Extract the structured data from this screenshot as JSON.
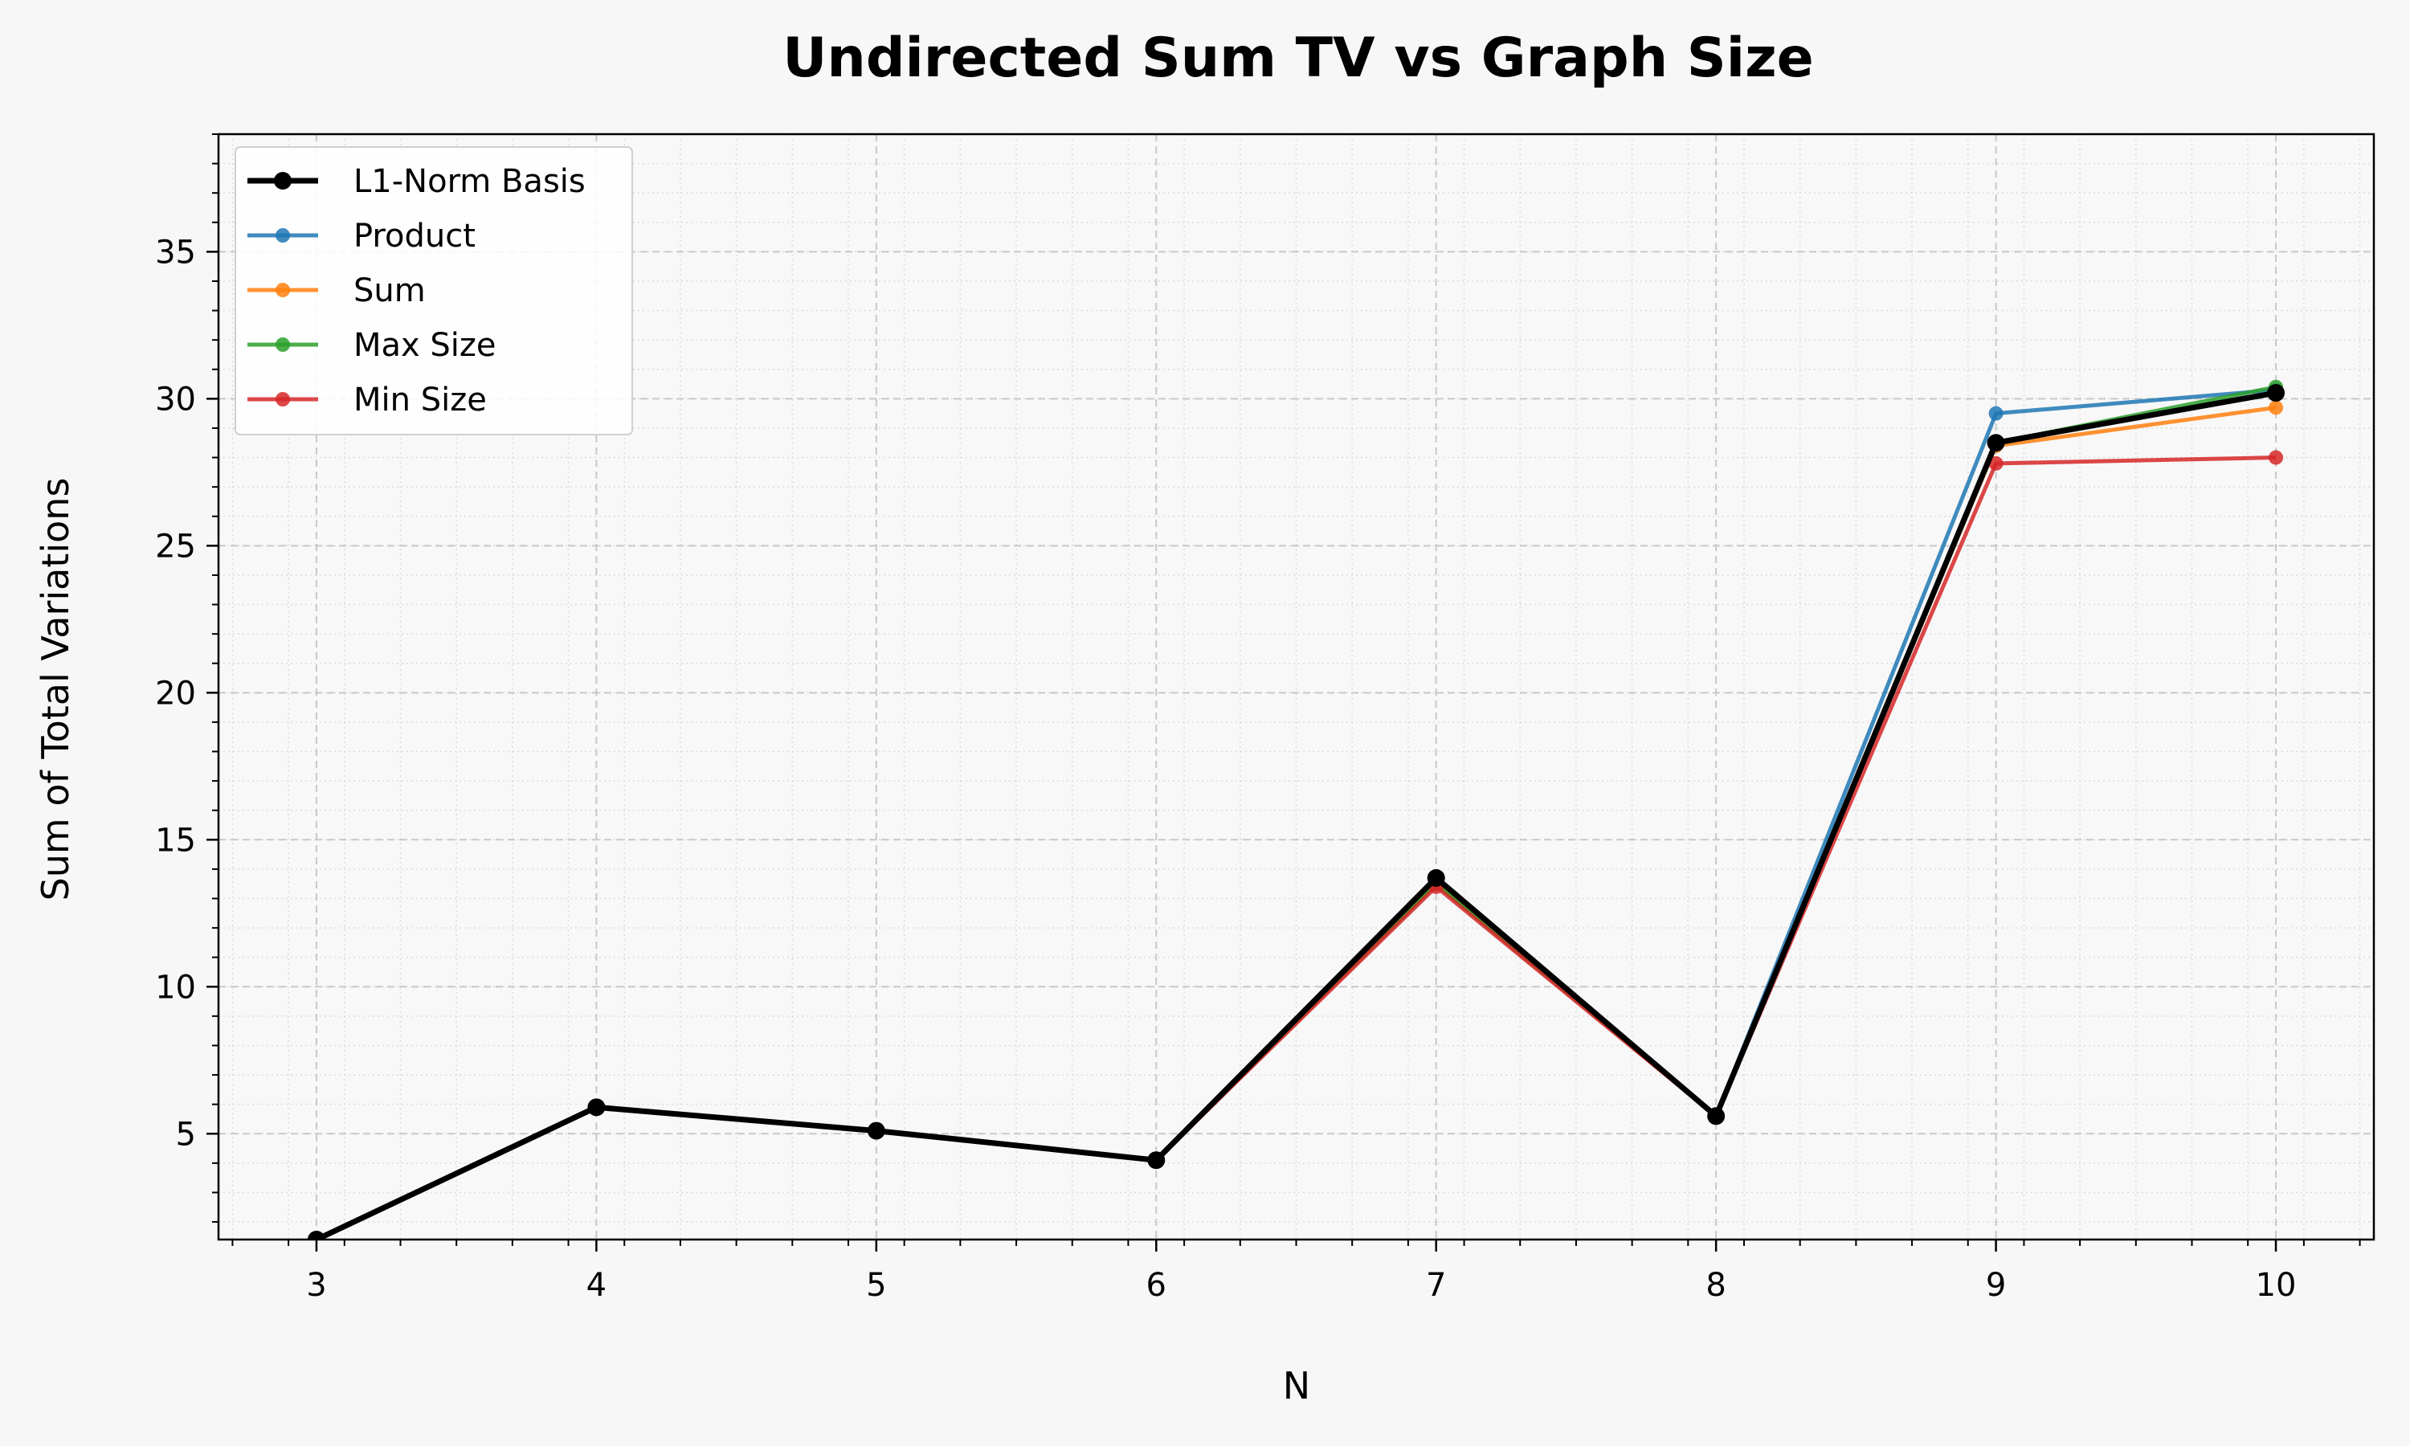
{
  "chart_data": {
    "type": "line",
    "title": "Undirected Sum TV vs Graph Size",
    "xlabel": "N",
    "ylabel": "Sum of Total Variations",
    "xlim": [
      2.65,
      10.35
    ],
    "ylim": [
      1.4,
      39.0
    ],
    "x_ticks": [
      3,
      4,
      5,
      6,
      7,
      8,
      9,
      10
    ],
    "x_tick_labels": [
      "3",
      "4",
      "5",
      "6",
      "7",
      "8",
      "9",
      "10"
    ],
    "y_ticks": [
      5,
      10,
      15,
      20,
      25,
      30,
      35
    ],
    "y_tick_labels": [
      "5",
      "10",
      "15",
      "20",
      "25",
      "30",
      "35"
    ],
    "grid": true,
    "minor_grid": true,
    "legend_position": "top-left",
    "x": [
      3,
      4,
      5,
      6,
      7,
      8,
      9,
      10
    ],
    "series": [
      {
        "name": "Product",
        "color": "#1f77b4",
        "values": [
          1.4,
          5.9,
          5.1,
          4.1,
          13.5,
          5.6,
          29.5,
          30.3
        ]
      },
      {
        "name": "Sum",
        "color": "#ff7f0e",
        "values": [
          1.4,
          5.9,
          5.1,
          4.1,
          13.5,
          5.6,
          28.4,
          29.7
        ]
      },
      {
        "name": "Max Size",
        "color": "#2ca02c",
        "values": [
          1.4,
          5.9,
          5.1,
          4.1,
          13.5,
          5.6,
          28.5,
          30.4
        ]
      },
      {
        "name": "Min Size",
        "color": "#d62728",
        "values": [
          1.4,
          5.9,
          5.1,
          4.1,
          13.4,
          5.6,
          27.8,
          28.0
        ]
      },
      {
        "name": "L1-Norm Basis",
        "color": "#000000",
        "values": [
          1.4,
          5.9,
          5.1,
          4.1,
          13.7,
          5.6,
          28.5,
          30.2
        ]
      }
    ],
    "legend_order": [
      "L1-Norm Basis",
      "Product",
      "Sum",
      "Max Size",
      "Min Size"
    ]
  }
}
